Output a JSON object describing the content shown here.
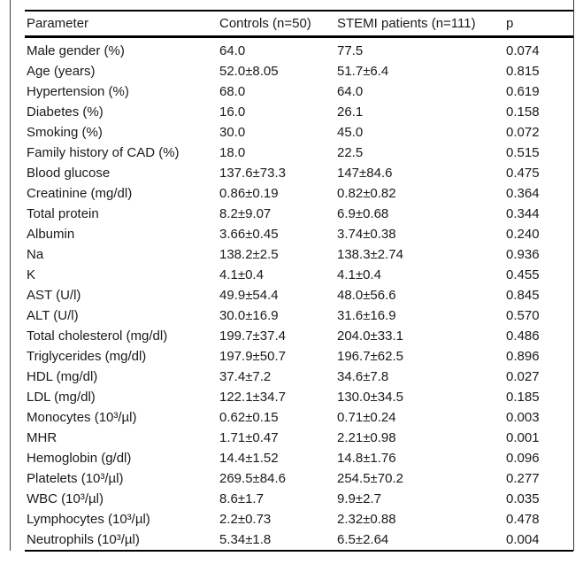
{
  "table": {
    "columns": [
      "Parameter",
      "Controls (n=50)",
      "STEMI patients (n=111)",
      "p"
    ],
    "rows": [
      [
        "Male gender (%)",
        "64.0",
        "77.5",
        "0.074"
      ],
      [
        "Age (years)",
        "52.0±8.05",
        "51.7±6.4",
        "0.815"
      ],
      [
        "Hypertension (%)",
        "68.0",
        "64.0",
        "0.619"
      ],
      [
        "Diabetes (%)",
        "16.0",
        "26.1",
        "0.158"
      ],
      [
        "Smoking (%)",
        "30.0",
        "45.0",
        "0.072"
      ],
      [
        "Family history of CAD (%)",
        "18.0",
        "22.5",
        "0.515"
      ],
      [
        "Blood glucose",
        "137.6±73.3",
        "147±84.6",
        "0.475"
      ],
      [
        "Creatinine (mg/dl)",
        "0.86±0.19",
        "0.82±0.82",
        "0.364"
      ],
      [
        "Total protein",
        "8.2±9.07",
        "6.9±0.68",
        "0.344"
      ],
      [
        "Albumin",
        "3.66±0.45",
        "3.74±0.38",
        "0.240"
      ],
      [
        "Na",
        "138.2±2.5",
        "138.3±2.74",
        "0.936"
      ],
      [
        "K",
        "4.1±0.4",
        "4.1±0.4",
        "0.455"
      ],
      [
        "AST (U/l)",
        "49.9±54.4",
        "48.0±56.6",
        "0.845"
      ],
      [
        "ALT (U/l)",
        "30.0±16.9",
        "31.6±16.9",
        "0.570"
      ],
      [
        "Total cholesterol (mg/dl)",
        "199.7±37.4",
        "204.0±33.1",
        "0.486"
      ],
      [
        "Triglycerides (mg/dl)",
        "197.9±50.7",
        "196.7±62.5",
        "0.896"
      ],
      [
        "HDL (mg/dl)",
        "37.4±7.2",
        "34.6±7.8",
        "0.027"
      ],
      [
        "LDL (mg/dl)",
        "122.1±34.7",
        "130.0±34.5",
        "0.185"
      ],
      [
        "Monocytes (10³/µl)",
        "0.62±0.15",
        "0.71±0.24",
        "0.003"
      ],
      [
        "MHR",
        "1.71±0.47",
        "2.21±0.98",
        "0.001"
      ],
      [
        "Hemoglobin (g/dl)",
        "14.4±1.52",
        "14.8±1.76",
        "0.096"
      ],
      [
        "Platelets (10³/µl)",
        "269.5±84.6",
        "254.5±70.2",
        "0.277"
      ],
      [
        "WBC (10³/µl)",
        "8.6±1.7",
        "9.9±2.7",
        "0.035"
      ],
      [
        "Lymphocytes (10³/µl)",
        "2.2±0.73",
        "2.32±0.88",
        "0.478"
      ],
      [
        "Neutrophils (10³/µl)",
        "5.34±1.8",
        "6.5±2.64",
        "0.004"
      ]
    ],
    "line_color": "#000000",
    "frame_line_color": "#3c3c3c",
    "text_color": "#1a1a1a"
  }
}
